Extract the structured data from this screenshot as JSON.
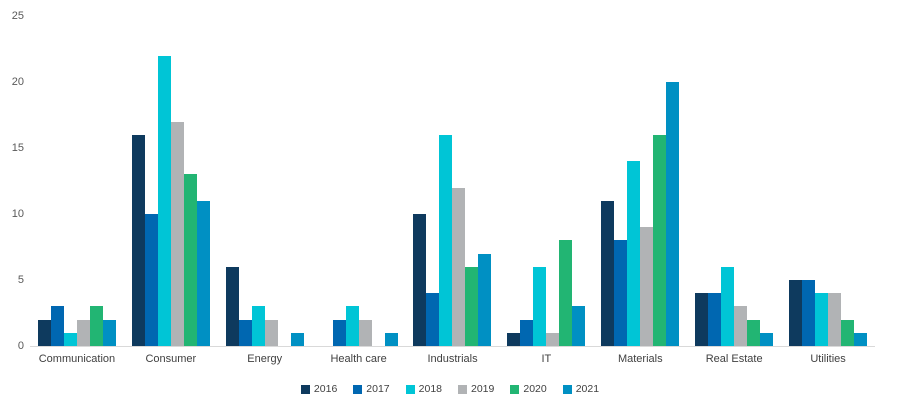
{
  "chart_data": {
    "type": "bar",
    "title": "",
    "xlabel": "",
    "ylabel": "",
    "ylim": [
      0,
      25
    ],
    "yticks": [
      0,
      5,
      10,
      15,
      20,
      25
    ],
    "grid": false,
    "legend_position": "bottom",
    "axis_label_color": "#595959",
    "category_label_color": "#404040",
    "axis_line_color": "#d9d9d9",
    "categories": [
      "Communication",
      "Consumer",
      "Energy",
      "Health care",
      "Industrials",
      "IT",
      "Materials",
      "Real Estate",
      "Utilities"
    ],
    "series": [
      {
        "name": "2016",
        "color": "#0e3a5e",
        "values": [
          2,
          16,
          6,
          0,
          10,
          1,
          11,
          4,
          5
        ]
      },
      {
        "name": "2017",
        "color": "#0067b1",
        "values": [
          3,
          10,
          2,
          2,
          4,
          2,
          8,
          4,
          5
        ]
      },
      {
        "name": "2018",
        "color": "#00c5d6",
        "values": [
          1,
          22,
          3,
          3,
          16,
          6,
          14,
          6,
          4
        ]
      },
      {
        "name": "2019",
        "color": "#b1b3b5",
        "values": [
          2,
          17,
          2,
          2,
          12,
          1,
          9,
          3,
          4
        ]
      },
      {
        "name": "2020",
        "color": "#22b573",
        "values": [
          3,
          13,
          0,
          0,
          6,
          8,
          16,
          2,
          2
        ]
      },
      {
        "name": "2021",
        "color": "#0090c3",
        "values": [
          2,
          11,
          1,
          1,
          7,
          3,
          20,
          1,
          1
        ]
      }
    ]
  }
}
